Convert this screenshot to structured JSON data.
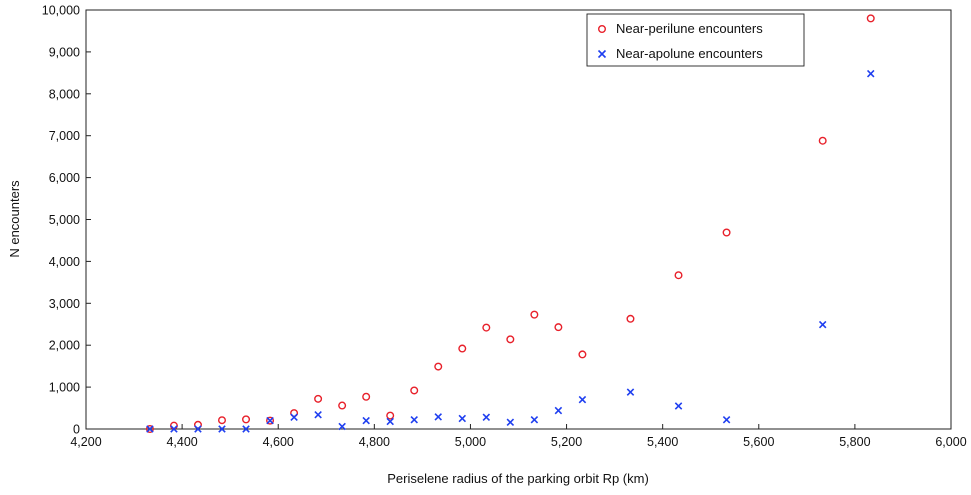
{
  "chart_data": {
    "type": "scatter",
    "title": "",
    "xlabel": "Periselene radius of the parking orbit Rp (km)",
    "ylabel": "N encounters",
    "xlim": [
      4200,
      6000
    ],
    "ylim": [
      0,
      10000
    ],
    "x_ticks": [
      "4,200",
      "4,400",
      "4,600",
      "4,800",
      "5,000",
      "5,200",
      "5,400",
      "5,600",
      "5,800",
      "6,000"
    ],
    "y_ticks": [
      "0",
      "1,000",
      "2,000",
      "3,000",
      "4,000",
      "5,000",
      "6,000",
      "7,000",
      "8,000",
      "9,000",
      "10,000"
    ],
    "grid": false,
    "legend_position": "top-right",
    "series": [
      {
        "name": "Near-perilune encounters",
        "marker": "circle",
        "color": "#e8202a",
        "points": [
          [
            4333,
            0
          ],
          [
            4383,
            80
          ],
          [
            4433,
            100
          ],
          [
            4483,
            210
          ],
          [
            4533,
            230
          ],
          [
            4583,
            200
          ],
          [
            4633,
            380
          ],
          [
            4683,
            720
          ],
          [
            4733,
            560
          ],
          [
            4783,
            770
          ],
          [
            4833,
            320
          ],
          [
            4883,
            920
          ],
          [
            4933,
            1490
          ],
          [
            4983,
            1920
          ],
          [
            5033,
            2420
          ],
          [
            5083,
            2140
          ],
          [
            5133,
            2730
          ],
          [
            5183,
            2430
          ],
          [
            5233,
            1780
          ],
          [
            5333,
            2630
          ],
          [
            5433,
            3670
          ],
          [
            5533,
            4690
          ],
          [
            5733,
            6880
          ],
          [
            5833,
            9800
          ]
        ]
      },
      {
        "name": "Near-apolune encounters",
        "marker": "x",
        "color": "#1f3ff0",
        "points": [
          [
            4333,
            0
          ],
          [
            4383,
            0
          ],
          [
            4433,
            0
          ],
          [
            4483,
            0
          ],
          [
            4533,
            0
          ],
          [
            4583,
            200
          ],
          [
            4633,
            280
          ],
          [
            4683,
            340
          ],
          [
            4733,
            60
          ],
          [
            4783,
            200
          ],
          [
            4833,
            180
          ],
          [
            4883,
            220
          ],
          [
            4933,
            290
          ],
          [
            4983,
            250
          ],
          [
            5033,
            280
          ],
          [
            5083,
            160
          ],
          [
            5133,
            220
          ],
          [
            5183,
            440
          ],
          [
            5233,
            700
          ],
          [
            5333,
            880
          ],
          [
            5433,
            550
          ],
          [
            5533,
            220
          ],
          [
            5733,
            2490
          ],
          [
            5833,
            8480
          ]
        ]
      }
    ]
  }
}
